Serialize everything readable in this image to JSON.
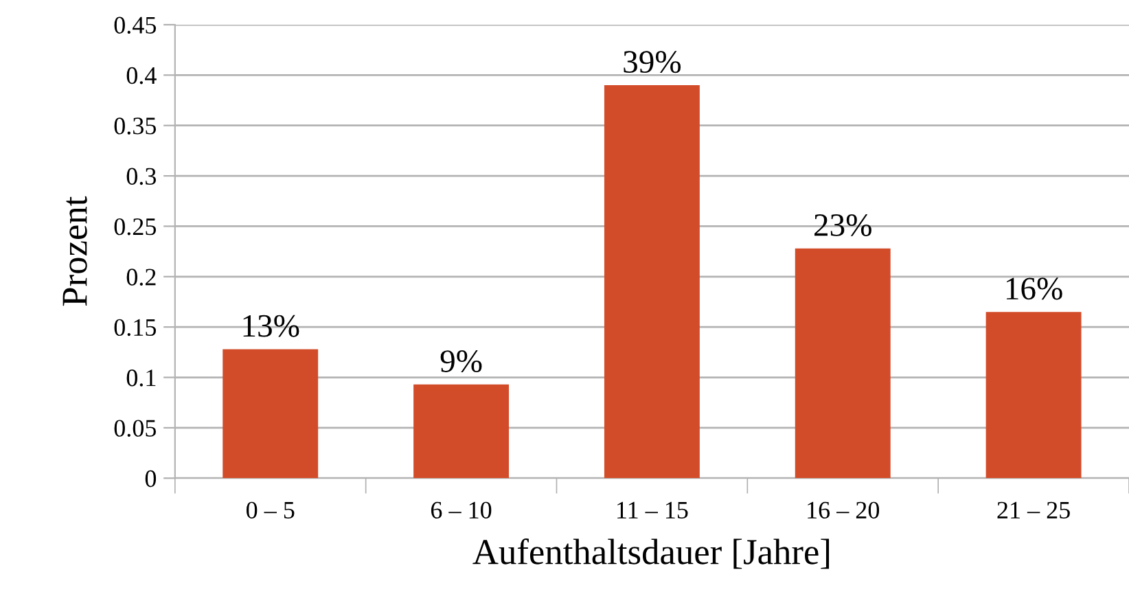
{
  "chart_data": {
    "type": "bar",
    "xlabel": "Aufenthaltsdauer [Jahre]",
    "ylabel": "Prozent",
    "categories": [
      "0 – 5",
      "6 – 10",
      "11 – 15",
      "16 – 20",
      "21 – 25"
    ],
    "values": [
      0.128,
      0.093,
      0.39,
      0.228,
      0.165
    ],
    "value_labels": [
      "13%",
      "9%",
      "39%",
      "23%",
      "16%"
    ],
    "color": "#d34c29",
    "ylim": [
      0,
      0.45
    ],
    "yticks": [
      {
        "value": 0,
        "label": "0"
      },
      0.05,
      0.1,
      0.15,
      0.2,
      0.25,
      0.3,
      0.35,
      0.4,
      0.45
    ],
    "grid": "y"
  }
}
